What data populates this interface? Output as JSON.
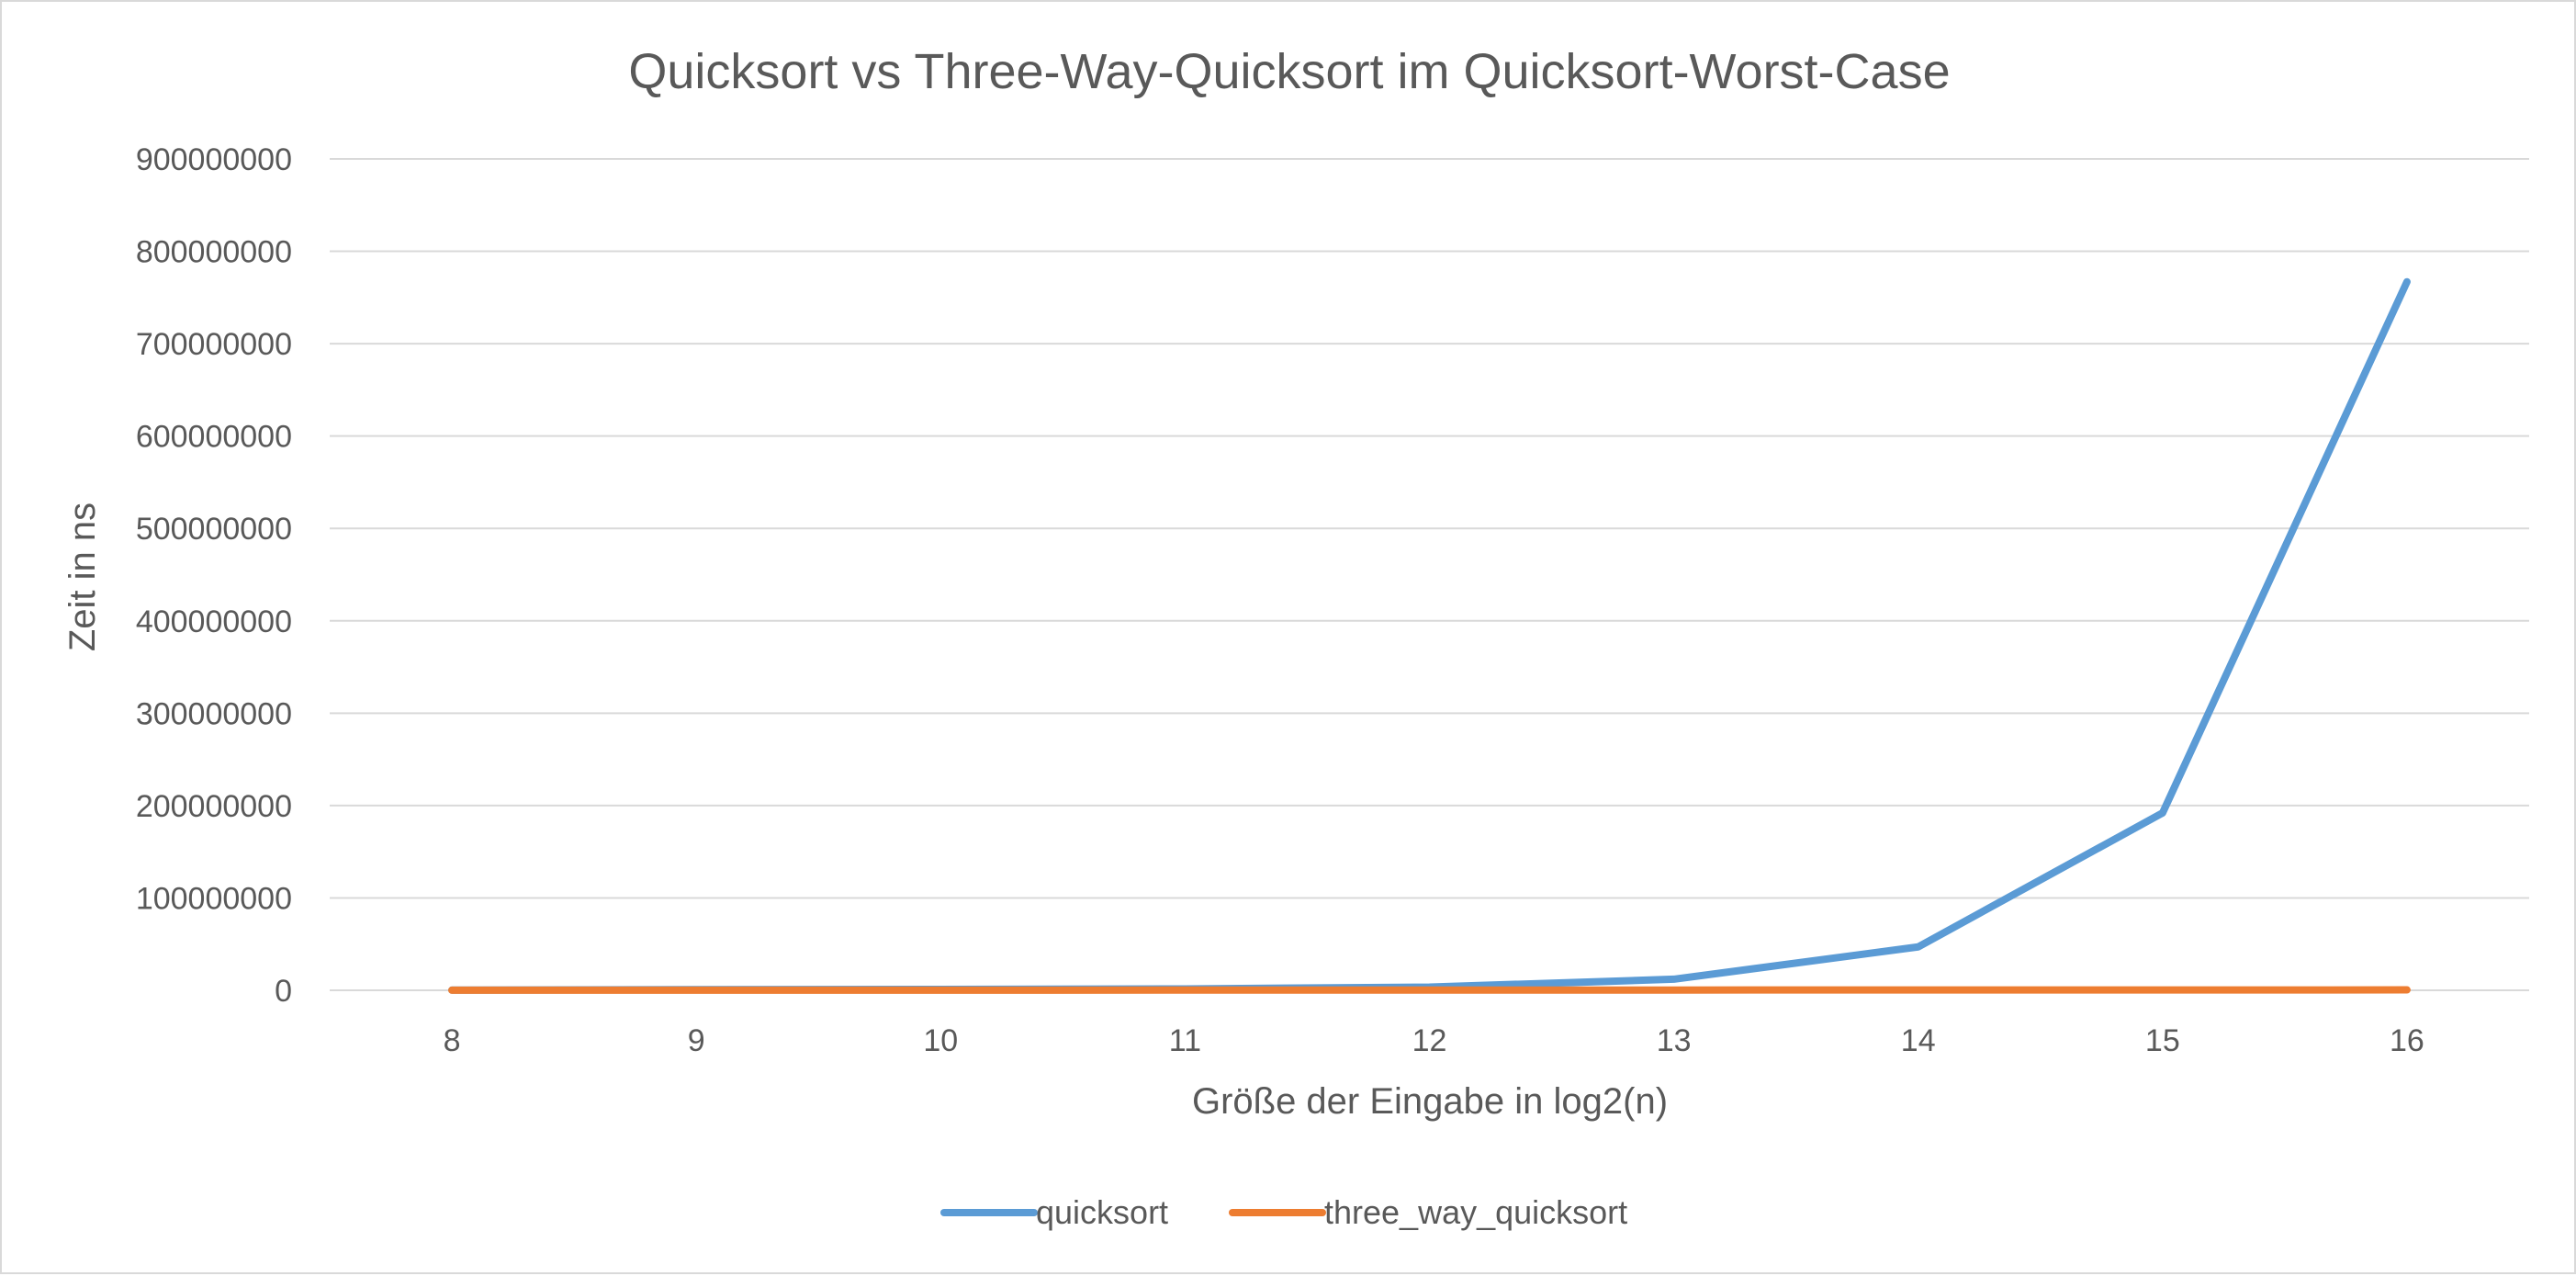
{
  "chart_data": {
    "type": "line",
    "title": "Quicksort vs Three-Way-Quicksort im Quicksort-Worst-Case",
    "xlabel": "Größe der Eingabe in log2(n)",
    "ylabel": "Zeit in ns",
    "categories": [
      "8",
      "9",
      "10",
      "11",
      "12",
      "13",
      "14",
      "15",
      "16"
    ],
    "yticks": [
      "0",
      "100000000",
      "200000000",
      "300000000",
      "400000000",
      "500000000",
      "600000000",
      "700000000",
      "800000000",
      "900000000"
    ],
    "ylim": [
      0,
      900000000
    ],
    "grid": true,
    "legend_position": "bottom",
    "series": [
      {
        "name": "quicksort",
        "color": "#5B9BD5",
        "values": [
          200000,
          800000,
          1000000,
          1500000,
          3500000,
          12000000,
          47000000,
          192000000,
          767000000
        ]
      },
      {
        "name": "three_way_quicksort",
        "color": "#ED7D31",
        "values": [
          100000,
          100000,
          150000,
          200000,
          250000,
          300000,
          350000,
          400000,
          450000
        ]
      }
    ]
  }
}
